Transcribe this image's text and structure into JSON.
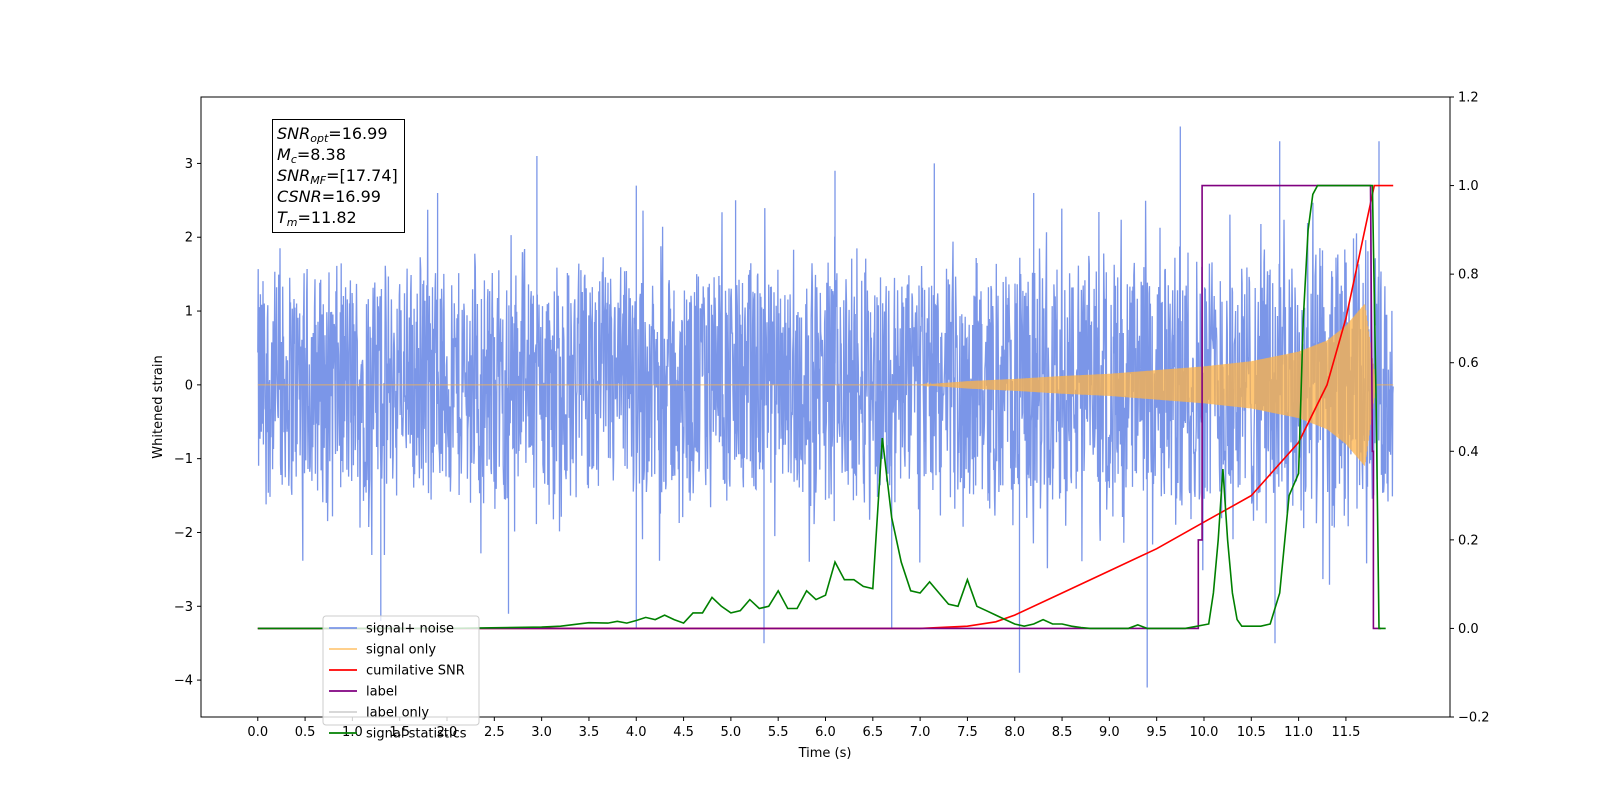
{
  "chart_data": {
    "type": "line",
    "title": "",
    "xlabel": "Time (s)",
    "ylabel": "Whitened strain",
    "xlim": [
      -0.6,
      12.6
    ],
    "ylim": [
      -4.5,
      3.9
    ],
    "y2lim": [
      -0.2,
      1.2
    ],
    "xticks": [
      0.0,
      0.5,
      1.0,
      1.5,
      2.0,
      2.5,
      3.0,
      3.5,
      4.0,
      4.5,
      5.0,
      5.5,
      6.0,
      6.5,
      7.0,
      7.5,
      8.0,
      8.5,
      9.0,
      9.5,
      10.0,
      10.5,
      11.0,
      11.5
    ],
    "xtick_labels": [
      "0.0",
      "0.5",
      "1.0",
      "1.5",
      "2.0",
      "2.5",
      "3.0",
      "3.5",
      "4.0",
      "4.5",
      "5.0",
      "5.5",
      "6.0",
      "6.5",
      "7.0",
      "7.5",
      "8.0",
      "8.5",
      "9.0",
      "9.5",
      "10.0",
      "10.5",
      "11.0",
      "11.5"
    ],
    "yticks": [
      -4,
      -3,
      -2,
      -1,
      0,
      1,
      2,
      3
    ],
    "ytick_labels": [
      "−4",
      "−3",
      "−2",
      "−1",
      "0",
      "1",
      "2",
      "3"
    ],
    "y2ticks": [
      -0.2,
      0.0,
      0.2,
      0.4,
      0.6,
      0.8,
      1.0,
      1.2
    ],
    "y2tick_labels": [
      "−0.2",
      "0.0",
      "0.2",
      "0.4",
      "0.6",
      "0.8",
      "1.0",
      "1.2"
    ],
    "grid": false,
    "legend_position": "lower-left",
    "annotation_box": {
      "lines": [
        {
          "sym": "SNR",
          "sub": "opt",
          "value": "=16.99"
        },
        {
          "sym": "M",
          "sub": "c",
          "value": "=8.38"
        },
        {
          "sym": "SNR",
          "sub": "MF",
          "value": "=[17.74]"
        },
        {
          "sym": "CSNR",
          "sub": "",
          "value": "=16.99"
        },
        {
          "sym": "T",
          "sub": "m",
          "value": "=11.82"
        }
      ]
    },
    "series": [
      {
        "name": "signal+ noise",
        "axis": "left",
        "color": "#7b96e8",
        "kind": "noise",
        "x_range": [
          0.0,
          12.0
        ],
        "envelope_x": [
          0,
          2,
          4,
          6,
          8,
          9,
          10,
          10.5,
          11,
          11.3,
          11.5,
          11.7,
          11.82,
          12.0
        ],
        "envelope_y": [
          1.5,
          1.5,
          1.5,
          1.5,
          1.6,
          1.6,
          1.7,
          1.75,
          1.8,
          1.85,
          1.9,
          2.0,
          1.5,
          1.5
        ],
        "spike_highs": [
          2.6,
          3.1,
          2.7,
          2.5,
          2.9,
          3.0,
          2.6,
          3.5,
          3.3,
          3.3
        ],
        "spike_lows": [
          -3.2,
          -3.1,
          -3.3,
          -3.5,
          -3.3,
          -3.9,
          -4.1,
          -3.5
        ]
      },
      {
        "name": "signal only",
        "axis": "left",
        "color": "#ffb347",
        "kind": "chirp",
        "x_range": [
          0.0,
          11.82
        ],
        "envelope_x": [
          0,
          7.0,
          7.5,
          8.0,
          8.5,
          9.0,
          9.5,
          10.0,
          10.5,
          11.0,
          11.3,
          11.5,
          11.7,
          11.82,
          12.0
        ],
        "envelope_y": [
          0.0,
          0.0,
          0.05,
          0.08,
          0.12,
          0.15,
          0.2,
          0.25,
          0.32,
          0.45,
          0.6,
          0.8,
          1.1,
          0.0,
          0.0
        ]
      },
      {
        "name": "cumilative SNR",
        "axis": "right",
        "color": "#ff0000",
        "x": [
          0,
          7.0,
          7.5,
          7.8,
          8.0,
          8.5,
          9.0,
          9.5,
          10.0,
          10.5,
          11.0,
          11.3,
          11.5,
          11.6,
          11.7,
          11.8,
          12.0
        ],
        "y": [
          0.0,
          0.0,
          0.005,
          0.015,
          0.03,
          0.08,
          0.13,
          0.18,
          0.24,
          0.3,
          0.42,
          0.55,
          0.7,
          0.8,
          0.9,
          1.0,
          1.0
        ]
      },
      {
        "name": "label",
        "axis": "right",
        "color": "#800080",
        "x": [
          0,
          9.94,
          9.94,
          9.98,
          9.98,
          11.76,
          11.78,
          11.79,
          11.79,
          11.87
        ],
        "y": [
          0.0,
          0.0,
          0.2,
          0.2,
          1.0,
          1.0,
          0.4,
          0.4,
          0.0,
          0.0
        ]
      },
      {
        "name": "label only",
        "axis": "right",
        "color": "#d3d3d3",
        "hidden_behind_legend": true,
        "x": [
          0
        ],
        "y": [
          0
        ]
      },
      {
        "name": "signal statistics",
        "axis": "right",
        "color": "#008000",
        "x": [
          0,
          1.0,
          2.0,
          3.0,
          3.2,
          3.5,
          3.7,
          3.8,
          3.9,
          4.0,
          4.1,
          4.2,
          4.3,
          4.4,
          4.5,
          4.6,
          4.7,
          4.8,
          4.9,
          5.0,
          5.1,
          5.2,
          5.3,
          5.4,
          5.5,
          5.6,
          5.7,
          5.8,
          5.9,
          6.0,
          6.1,
          6.2,
          6.3,
          6.4,
          6.5,
          6.6,
          6.7,
          6.8,
          6.9,
          7.0,
          7.1,
          7.2,
          7.3,
          7.4,
          7.5,
          7.6,
          7.7,
          7.8,
          7.9,
          8.0,
          8.1,
          8.2,
          8.3,
          8.4,
          8.5,
          8.6,
          8.7,
          8.8,
          9.0,
          9.2,
          9.3,
          9.4,
          9.6,
          9.8,
          10.0,
          10.05,
          10.1,
          10.15,
          10.2,
          10.25,
          10.3,
          10.35,
          10.4,
          10.6,
          10.7,
          10.8,
          10.9,
          11.0,
          11.05,
          11.1,
          11.15,
          11.2,
          11.3,
          11.78,
          11.82,
          11.85,
          11.92
        ],
        "y": [
          0.0,
          0.0,
          0.0,
          0.003,
          0.005,
          0.013,
          0.012,
          0.016,
          0.012,
          0.018,
          0.025,
          0.02,
          0.03,
          0.02,
          0.012,
          0.035,
          0.035,
          0.07,
          0.05,
          0.035,
          0.04,
          0.065,
          0.045,
          0.05,
          0.085,
          0.045,
          0.045,
          0.085,
          0.065,
          0.075,
          0.15,
          0.11,
          0.11,
          0.095,
          0.09,
          0.43,
          0.25,
          0.15,
          0.085,
          0.08,
          0.105,
          0.08,
          0.055,
          0.05,
          0.11,
          0.05,
          0.04,
          0.03,
          0.02,
          0.01,
          0.005,
          0.01,
          0.02,
          0.01,
          0.01,
          0.005,
          0.002,
          0.0,
          0.0,
          0.0,
          0.008,
          0.0,
          0.0,
          0.0,
          0.008,
          0.01,
          0.08,
          0.2,
          0.36,
          0.2,
          0.08,
          0.02,
          0.005,
          0.005,
          0.01,
          0.08,
          0.3,
          0.35,
          0.7,
          0.9,
          0.98,
          1.0,
          1.0,
          1.0,
          0.5,
          0.0,
          0.0
        ]
      }
    ]
  }
}
